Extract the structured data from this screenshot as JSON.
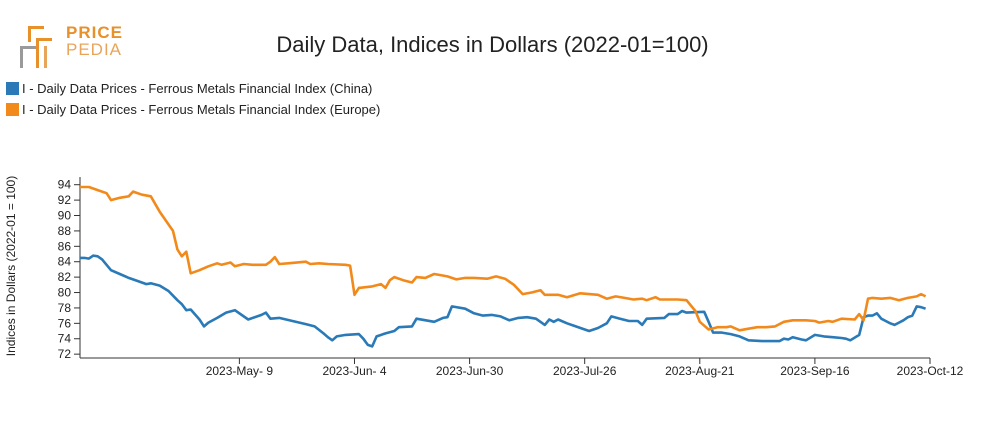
{
  "logo": {
    "line1": "PRICE",
    "line2": "PEDIA",
    "color": "#e8902a"
  },
  "chart_data": {
    "type": "line",
    "title": "Daily Data, Indices in Dollars (2022-01=100)",
    "ylabel": "Indices in Dollars (2022-01 = 100)",
    "xlabel": "",
    "ylim": [
      71.5,
      95
    ],
    "yticks": [
      72,
      74,
      76,
      78,
      80,
      82,
      84,
      86,
      88,
      90,
      92,
      94
    ],
    "x_range": [
      "2023-04-03",
      "2023-10-12"
    ],
    "xticks": [
      {
        "date": "2023-05-09",
        "label": "2023-May- 9"
      },
      {
        "date": "2023-06-04",
        "label": "2023-Jun- 4"
      },
      {
        "date": "2023-06-30",
        "label": "2023-Jun-30"
      },
      {
        "date": "2023-07-26",
        "label": "2023-Jul-26"
      },
      {
        "date": "2023-08-21",
        "label": "2023-Aug-21"
      },
      {
        "date": "2023-09-16",
        "label": "2023-Sep-16"
      },
      {
        "date": "2023-10-12",
        "label": "2023-Oct-12"
      }
    ],
    "grid": false,
    "legend_position": "top-left",
    "series": [
      {
        "name": "I - Daily Data Prices - Ferrous Metals Financial Index (China)",
        "color": "#2a7ab8",
        "points": [
          [
            "2023-04-03",
            84.5
          ],
          [
            "2023-04-04",
            84.5
          ],
          [
            "2023-04-05",
            84.4
          ],
          [
            "2023-04-06",
            84.8
          ],
          [
            "2023-04-07",
            84.7
          ],
          [
            "2023-04-08",
            84.3
          ],
          [
            "2023-04-10",
            82.9
          ],
          [
            "2023-04-12",
            82.4
          ],
          [
            "2023-04-14",
            81.9
          ],
          [
            "2023-04-16",
            81.5
          ],
          [
            "2023-04-18",
            81.1
          ],
          [
            "2023-04-19",
            81.2
          ],
          [
            "2023-04-21",
            80.9
          ],
          [
            "2023-04-23",
            80.2
          ],
          [
            "2023-04-25",
            79.0
          ],
          [
            "2023-04-26",
            78.5
          ],
          [
            "2023-04-27",
            77.7
          ],
          [
            "2023-04-28",
            77.8
          ],
          [
            "2023-04-30",
            76.5
          ],
          [
            "2023-05-01",
            75.6
          ],
          [
            "2023-05-02",
            76.1
          ],
          [
            "2023-05-04",
            76.7
          ],
          [
            "2023-05-06",
            77.4
          ],
          [
            "2023-05-08",
            77.7
          ],
          [
            "2023-05-11",
            76.5
          ],
          [
            "2023-05-14",
            77.1
          ],
          [
            "2023-05-15",
            77.4
          ],
          [
            "2023-05-16",
            76.6
          ],
          [
            "2023-05-18",
            76.7
          ],
          [
            "2023-05-21",
            76.3
          ],
          [
            "2023-05-24",
            75.9
          ],
          [
            "2023-05-26",
            75.6
          ],
          [
            "2023-05-28",
            74.7
          ],
          [
            "2023-05-29",
            74.2
          ],
          [
            "2023-05-30",
            73.8
          ],
          [
            "2023-05-31",
            74.3
          ],
          [
            "2023-06-02",
            74.5
          ],
          [
            "2023-06-05",
            74.6
          ],
          [
            "2023-06-06",
            74.0
          ],
          [
            "2023-06-07",
            73.2
          ],
          [
            "2023-06-08",
            73.0
          ],
          [
            "2023-06-09",
            74.3
          ],
          [
            "2023-06-11",
            74.7
          ],
          [
            "2023-06-13",
            75.0
          ],
          [
            "2023-06-14",
            75.5
          ],
          [
            "2023-06-17",
            75.6
          ],
          [
            "2023-06-18",
            76.6
          ],
          [
            "2023-06-22",
            76.2
          ],
          [
            "2023-06-24",
            76.7
          ],
          [
            "2023-06-25",
            76.8
          ],
          [
            "2023-06-26",
            78.2
          ],
          [
            "2023-06-29",
            77.9
          ],
          [
            "2023-07-01",
            77.3
          ],
          [
            "2023-07-03",
            77.0
          ],
          [
            "2023-07-05",
            77.1
          ],
          [
            "2023-07-07",
            76.9
          ],
          [
            "2023-07-09",
            76.4
          ],
          [
            "2023-07-11",
            76.7
          ],
          [
            "2023-07-13",
            76.8
          ],
          [
            "2023-07-15",
            76.6
          ],
          [
            "2023-07-16",
            76.2
          ],
          [
            "2023-07-17",
            75.8
          ],
          [
            "2023-07-18",
            76.5
          ],
          [
            "2023-07-19",
            76.2
          ],
          [
            "2023-07-20",
            76.5
          ],
          [
            "2023-07-22",
            76.0
          ],
          [
            "2023-07-24",
            75.6
          ],
          [
            "2023-07-27",
            75.0
          ],
          [
            "2023-07-29",
            75.4
          ],
          [
            "2023-07-31",
            76.0
          ],
          [
            "2023-08-01",
            76.9
          ],
          [
            "2023-08-03",
            76.6
          ],
          [
            "2023-08-05",
            76.3
          ],
          [
            "2023-08-07",
            76.3
          ],
          [
            "2023-08-08",
            75.8
          ],
          [
            "2023-08-09",
            76.6
          ],
          [
            "2023-08-13",
            76.7
          ],
          [
            "2023-08-14",
            77.2
          ],
          [
            "2023-08-16",
            77.2
          ],
          [
            "2023-08-17",
            77.6
          ],
          [
            "2023-08-18",
            77.4
          ],
          [
            "2023-08-22",
            77.5
          ],
          [
            "2023-08-23",
            76.2
          ],
          [
            "2023-08-24",
            74.8
          ],
          [
            "2023-08-26",
            74.8
          ],
          [
            "2023-08-28",
            74.6
          ],
          [
            "2023-08-30",
            74.3
          ],
          [
            "2023-09-01",
            73.8
          ],
          [
            "2023-09-04",
            73.7
          ],
          [
            "2023-09-06",
            73.7
          ],
          [
            "2023-09-08",
            73.7
          ],
          [
            "2023-09-09",
            74.0
          ],
          [
            "2023-09-10",
            73.9
          ],
          [
            "2023-09-11",
            74.2
          ],
          [
            "2023-09-13",
            73.9
          ],
          [
            "2023-09-14",
            73.8
          ],
          [
            "2023-09-16",
            74.5
          ],
          [
            "2023-09-18",
            74.3
          ],
          [
            "2023-09-20",
            74.2
          ],
          [
            "2023-09-22",
            74.1
          ],
          [
            "2023-09-23",
            74.0
          ],
          [
            "2023-09-24",
            73.8
          ],
          [
            "2023-09-26",
            74.5
          ],
          [
            "2023-09-27",
            76.8
          ],
          [
            "2023-09-28",
            77.0
          ],
          [
            "2023-09-29",
            77.0
          ],
          [
            "2023-09-30",
            77.3
          ],
          [
            "2023-10-01",
            76.6
          ],
          [
            "2023-10-02",
            76.3
          ],
          [
            "2023-10-03",
            76.0
          ],
          [
            "2023-10-04",
            75.8
          ],
          [
            "2023-10-05",
            76.1
          ],
          [
            "2023-10-06",
            76.4
          ],
          [
            "2023-10-07",
            76.8
          ],
          [
            "2023-10-08",
            77.0
          ],
          [
            "2023-10-09",
            78.2
          ],
          [
            "2023-10-10",
            78.1
          ],
          [
            "2023-10-11",
            77.9
          ]
        ]
      },
      {
        "name": "I - Daily Data Prices - Ferrous Metals Financial Index (Europe)",
        "color": "#f28a1b",
        "points": [
          [
            "2023-04-03",
            93.7
          ],
          [
            "2023-04-05",
            93.7
          ],
          [
            "2023-04-07",
            93.3
          ],
          [
            "2023-04-09",
            92.9
          ],
          [
            "2023-04-10",
            92.0
          ],
          [
            "2023-04-12",
            92.3
          ],
          [
            "2023-04-14",
            92.5
          ],
          [
            "2023-04-15",
            93.1
          ],
          [
            "2023-04-17",
            92.7
          ],
          [
            "2023-04-19",
            92.5
          ],
          [
            "2023-04-21",
            90.5
          ],
          [
            "2023-04-24",
            88.0
          ],
          [
            "2023-04-25",
            85.6
          ],
          [
            "2023-04-26",
            84.7
          ],
          [
            "2023-04-27",
            85.3
          ],
          [
            "2023-04-28",
            82.5
          ],
          [
            "2023-04-30",
            82.9
          ],
          [
            "2023-05-02",
            83.4
          ],
          [
            "2023-05-04",
            83.8
          ],
          [
            "2023-05-05",
            83.6
          ],
          [
            "2023-05-07",
            83.9
          ],
          [
            "2023-05-08",
            83.4
          ],
          [
            "2023-05-10",
            83.7
          ],
          [
            "2023-05-12",
            83.6
          ],
          [
            "2023-05-15",
            83.6
          ],
          [
            "2023-05-16",
            84.0
          ],
          [
            "2023-05-17",
            84.6
          ],
          [
            "2023-05-18",
            83.7
          ],
          [
            "2023-05-20",
            83.8
          ],
          [
            "2023-05-24",
            84.0
          ],
          [
            "2023-05-25",
            83.7
          ],
          [
            "2023-05-27",
            83.8
          ],
          [
            "2023-05-29",
            83.7
          ],
          [
            "2023-06-02",
            83.6
          ],
          [
            "2023-06-03",
            83.5
          ],
          [
            "2023-06-04",
            79.7
          ],
          [
            "2023-06-05",
            80.6
          ],
          [
            "2023-06-08",
            80.8
          ],
          [
            "2023-06-10",
            81.1
          ],
          [
            "2023-06-11",
            80.6
          ],
          [
            "2023-06-12",
            81.6
          ],
          [
            "2023-06-13",
            82.0
          ],
          [
            "2023-06-15",
            81.6
          ],
          [
            "2023-06-17",
            81.3
          ],
          [
            "2023-06-18",
            82.0
          ],
          [
            "2023-06-20",
            81.9
          ],
          [
            "2023-06-22",
            82.4
          ],
          [
            "2023-06-25",
            82.1
          ],
          [
            "2023-06-27",
            81.7
          ],
          [
            "2023-06-29",
            81.9
          ],
          [
            "2023-07-01",
            81.9
          ],
          [
            "2023-07-04",
            81.8
          ],
          [
            "2023-07-06",
            82.1
          ],
          [
            "2023-07-08",
            81.8
          ],
          [
            "2023-07-10",
            81.0
          ],
          [
            "2023-07-12",
            79.8
          ],
          [
            "2023-07-14",
            80.0
          ],
          [
            "2023-07-16",
            80.3
          ],
          [
            "2023-07-17",
            79.7
          ],
          [
            "2023-07-20",
            79.7
          ],
          [
            "2023-07-22",
            79.4
          ],
          [
            "2023-07-25",
            79.9
          ],
          [
            "2023-07-29",
            79.7
          ],
          [
            "2023-07-31",
            79.2
          ],
          [
            "2023-08-02",
            79.5
          ],
          [
            "2023-08-04",
            79.3
          ],
          [
            "2023-08-06",
            79.1
          ],
          [
            "2023-08-08",
            79.2
          ],
          [
            "2023-08-09",
            79.0
          ],
          [
            "2023-08-11",
            79.4
          ],
          [
            "2023-08-12",
            79.1
          ],
          [
            "2023-08-16",
            79.1
          ],
          [
            "2023-08-18",
            79.0
          ],
          [
            "2023-08-20",
            77.6
          ],
          [
            "2023-08-21",
            76.2
          ],
          [
            "2023-08-23",
            75.2
          ],
          [
            "2023-08-25",
            75.5
          ],
          [
            "2023-08-27",
            75.5
          ],
          [
            "2023-08-28",
            75.6
          ],
          [
            "2023-08-30",
            75.1
          ],
          [
            "2023-09-01",
            75.3
          ],
          [
            "2023-09-03",
            75.5
          ],
          [
            "2023-09-05",
            75.5
          ],
          [
            "2023-09-07",
            75.6
          ],
          [
            "2023-09-09",
            76.2
          ],
          [
            "2023-09-11",
            76.4
          ],
          [
            "2023-09-14",
            76.4
          ],
          [
            "2023-09-16",
            76.3
          ],
          [
            "2023-09-17",
            76.1
          ],
          [
            "2023-09-19",
            76.3
          ],
          [
            "2023-09-20",
            76.2
          ],
          [
            "2023-09-22",
            76.6
          ],
          [
            "2023-09-25",
            76.5
          ],
          [
            "2023-09-26",
            77.2
          ],
          [
            "2023-09-27",
            76.4
          ],
          [
            "2023-09-28",
            79.2
          ],
          [
            "2023-09-29",
            79.3
          ],
          [
            "2023-10-01",
            79.2
          ],
          [
            "2023-10-03",
            79.3
          ],
          [
            "2023-10-05",
            79.0
          ],
          [
            "2023-10-07",
            79.3
          ],
          [
            "2023-10-09",
            79.5
          ],
          [
            "2023-10-10",
            79.8
          ],
          [
            "2023-10-11",
            79.5
          ]
        ]
      }
    ]
  }
}
